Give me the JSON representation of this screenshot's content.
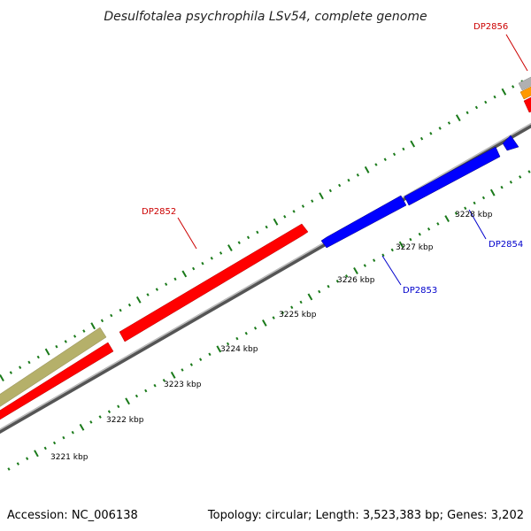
{
  "title": "Desulfotalea psychrophila LSv54, complete genome",
  "footer": {
    "accession": "Accession: NC_006138",
    "summary": "Topology: circular; Length: 3,523,383 bp; Genes: 3,202"
  },
  "colors": {
    "forward": "#ff0000",
    "reverse": "#0000ff",
    "olive": "#b5b06a",
    "orange": "#ff9900",
    "gray": "#b0b0b0",
    "backbone": "#777777",
    "tick": "#1a7a1a",
    "label_forward": "#cc0000",
    "label_reverse": "#0000cc"
  },
  "scale_labels": [
    "3221 kbp",
    "3222 kbp",
    "3223 kbp",
    "3224 kbp",
    "3225 kbp",
    "3226 kbp",
    "3227 kbp",
    "3228 kbp"
  ],
  "genes": [
    {
      "label": "DP2852",
      "strand": "forward"
    },
    {
      "label": "DP2853",
      "strand": "reverse"
    },
    {
      "label": "DP2854",
      "strand": "reverse"
    },
    {
      "label": "DP2856",
      "strand": "forward"
    }
  ]
}
